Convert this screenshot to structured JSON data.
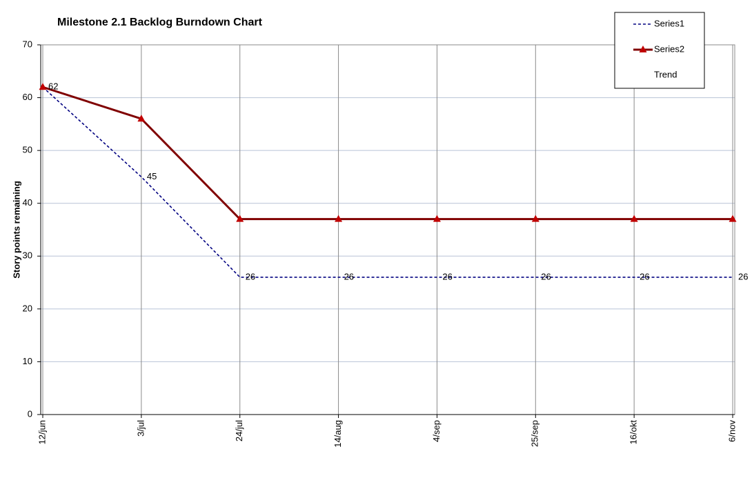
{
  "chart_data": {
    "type": "line",
    "title": "Milestone 2.1 Backlog Burndown Chart",
    "y_label": "Story points remaining",
    "categories": [
      "12/jun",
      "3/jul",
      "24/jul",
      "14/aug",
      "4/sep",
      "25/sep",
      "16/okt",
      "6/nov"
    ],
    "series": [
      {
        "name": "Series1",
        "color": "#000080",
        "line_style": "dashed",
        "data_labels": true,
        "values": [
          62,
          45,
          26,
          26,
          26,
          26,
          26,
          26
        ]
      },
      {
        "name": "Series2",
        "color": "#800000",
        "marker": "triangle",
        "marker_color": "#c00000",
        "values": [
          62,
          56,
          37,
          37,
          37,
          37,
          37,
          37
        ]
      },
      {
        "name": "Trend",
        "values": [
          null,
          null,
          null,
          null,
          null,
          null,
          null,
          null
        ]
      }
    ],
    "ylim": [
      0,
      70
    ],
    "yticks": [
      0,
      10,
      20,
      30,
      40,
      50,
      60,
      70
    ],
    "grid": true,
    "legend": "top-right"
  }
}
